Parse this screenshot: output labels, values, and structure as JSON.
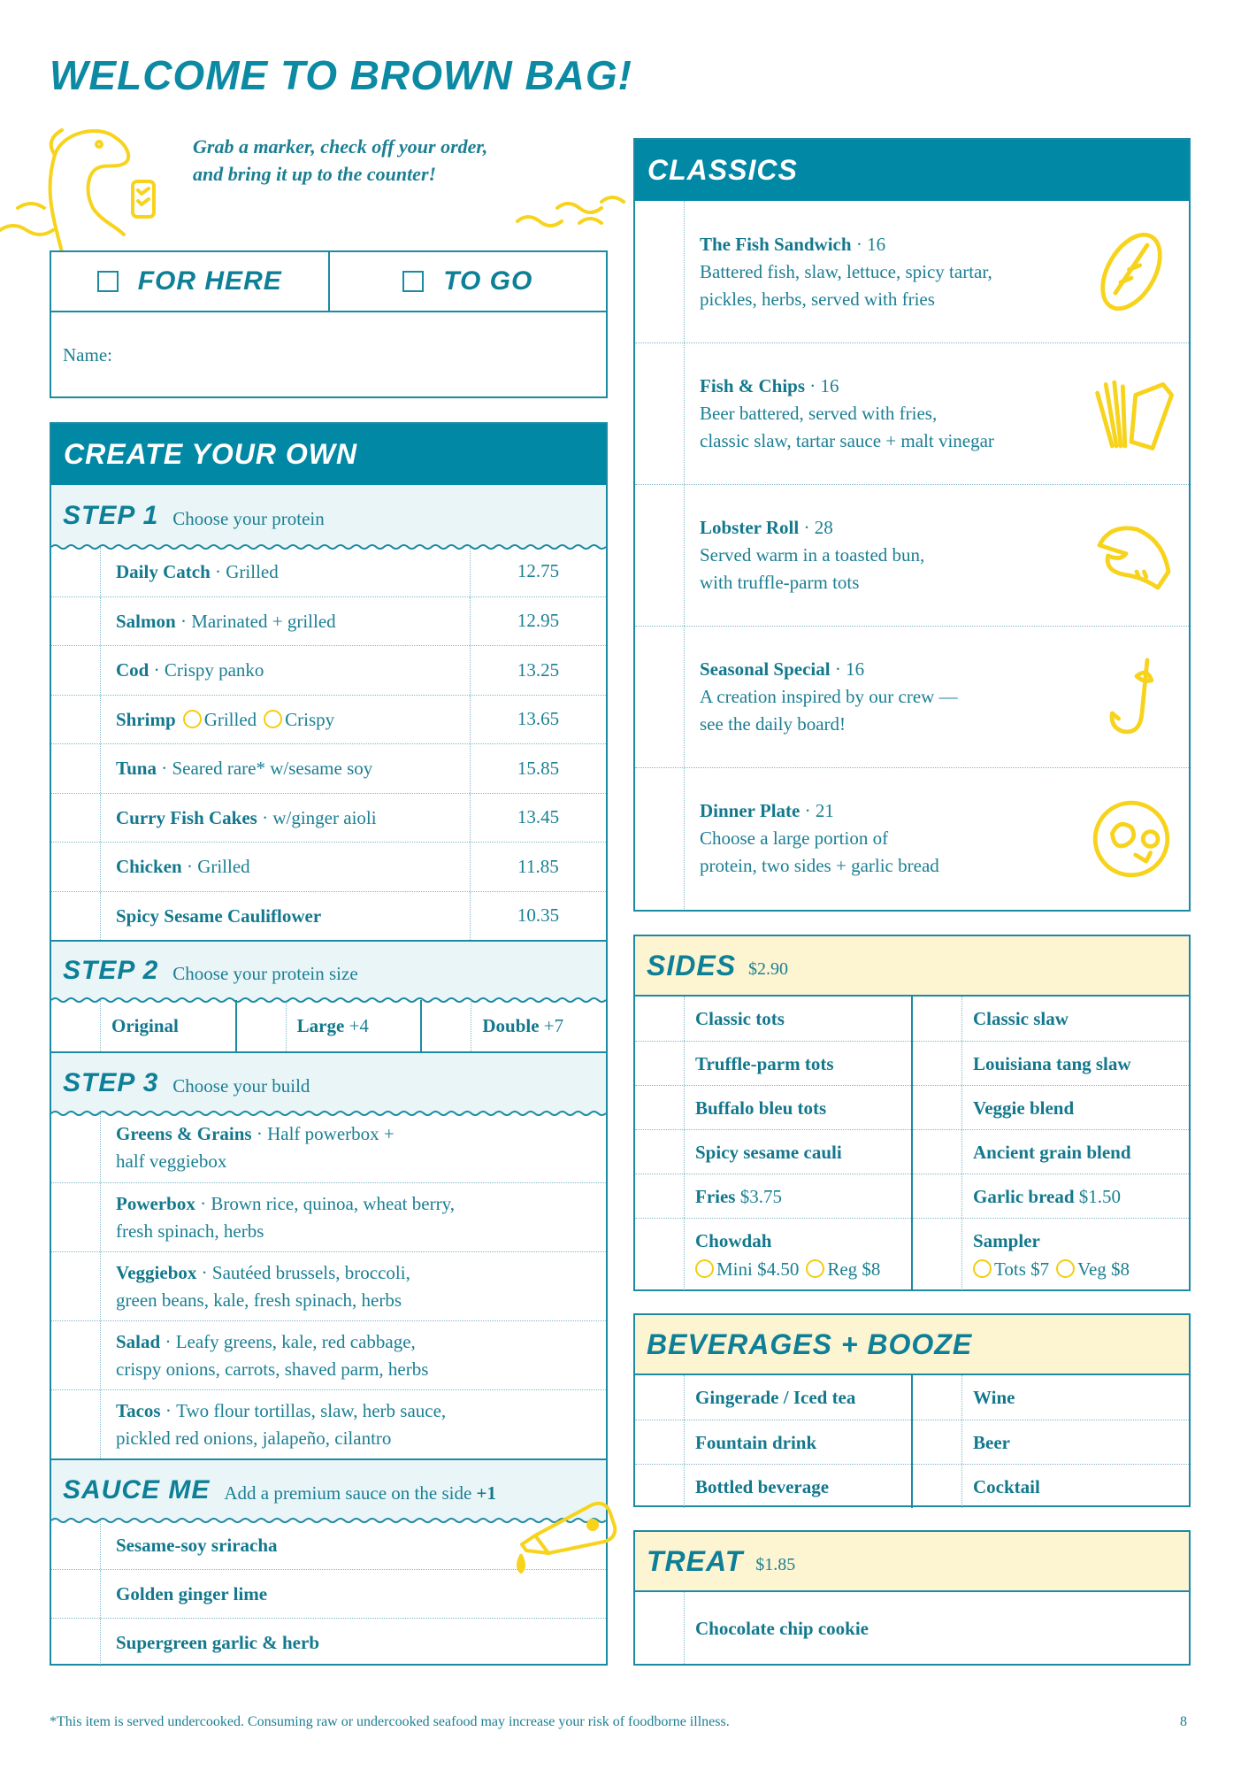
{
  "title": "Welcome to Brown Bag!",
  "intro": [
    "Grab a marker, check off your order,",
    "and bring it up to the counter!"
  ],
  "order": {
    "for_here": "For here",
    "to_go": "To go",
    "name_label": "Name:"
  },
  "create_your_own": {
    "title": "Create your own",
    "step1": {
      "label": "Step 1",
      "text": "Choose your protein"
    },
    "proteins": [
      {
        "name": "Daily Catch",
        "desc": "Grilled",
        "price": "12.75"
      },
      {
        "name": "Salmon",
        "desc": "Marinated + grilled",
        "price": "12.95"
      },
      {
        "name": "Cod",
        "desc": "Crispy panko",
        "price": "13.25"
      },
      {
        "name": "Shrimp",
        "options": [
          "Grilled",
          "Crispy"
        ],
        "price": "13.65"
      },
      {
        "name": "Tuna",
        "desc": "Seared rare* w/sesame soy",
        "price": "15.85"
      },
      {
        "name": "Curry Fish Cakes",
        "desc": "w/ginger aioli",
        "price": "13.45"
      },
      {
        "name": "Chicken",
        "desc": "Grilled",
        "price": "11.85"
      },
      {
        "name": "Spicy Sesame Cauliflower",
        "price": "10.35"
      }
    ],
    "step2": {
      "label": "Step 2",
      "text": "Choose your protein size"
    },
    "sizes": [
      {
        "name": "Original"
      },
      {
        "name": "Large",
        "extra": "+4"
      },
      {
        "name": "Double",
        "extra": "+7"
      }
    ],
    "step3": {
      "label": "Step 3",
      "text": "Choose your build"
    },
    "builds": [
      {
        "name": "Greens & Grains",
        "lines": [
          "Half powerbox +",
          "half veggiebox"
        ]
      },
      {
        "name": "Powerbox",
        "lines": [
          "Brown rice, quinoa, wheat berry,",
          "fresh spinach, herbs"
        ]
      },
      {
        "name": "Veggiebox",
        "lines": [
          "Sautéed brussels, broccoli,",
          "green beans, kale, fresh spinach, herbs"
        ]
      },
      {
        "name": "Salad",
        "lines": [
          "Leafy greens, kale, red cabbage,",
          "crispy onions, carrots, shaved parm, herbs"
        ]
      },
      {
        "name": "Tacos",
        "lines": [
          "Two flour tortillas, slaw, herb sauce,",
          "pickled red onions, jalapeño, cilantro"
        ]
      }
    ],
    "sauce": {
      "label": "Sauce me",
      "text": "Add a premium sauce on the side",
      "extra": "+1"
    },
    "sauces": [
      "Sesame-soy sriracha",
      "Golden ginger lime",
      "Supergreen garlic & herb"
    ]
  },
  "classics": {
    "title": "Classics",
    "items": [
      {
        "name": "The Fish Sandwich",
        "price": "16",
        "lines": [
          "Battered fish, slaw, lettuce, spicy tartar,",
          "pickles, herbs, served with fries"
        ],
        "icon": "sandwich-icon"
      },
      {
        "name": "Fish & Chips",
        "price": "16",
        "lines": [
          "Beer battered, served with fries,",
          "classic slaw, tartar sauce + malt vinegar"
        ],
        "icon": "fries-icon"
      },
      {
        "name": "Lobster Roll",
        "price": "28",
        "lines": [
          "Served warm in a toasted bun,",
          "with truffle-parm tots"
        ],
        "icon": "lobster-claw-icon"
      },
      {
        "name": "Seasonal Special",
        "price": "16",
        "lines": [
          "A creation inspired by our crew —",
          "see the daily board!"
        ],
        "icon": "fish-hook-icon"
      },
      {
        "name": "Dinner Plate",
        "price": "21",
        "lines": [
          "Choose a large portion of",
          "protein, two sides + garlic bread"
        ],
        "icon": "plate-icon"
      }
    ]
  },
  "sides": {
    "title": "Sides",
    "price": "$2.90",
    "left": [
      {
        "name": "Classic tots"
      },
      {
        "name": "Truffle-parm tots"
      },
      {
        "name": "Buffalo bleu tots"
      },
      {
        "name": "Spicy sesame cauli"
      },
      {
        "name": "Fries",
        "extra": "$3.75"
      },
      {
        "name": "Chowdah",
        "options": [
          "Mini $4.50",
          "Reg $8"
        ]
      }
    ],
    "right": [
      {
        "name": "Classic slaw"
      },
      {
        "name": "Louisiana tang slaw"
      },
      {
        "name": "Veggie blend"
      },
      {
        "name": "Ancient grain blend"
      },
      {
        "name": "Garlic bread",
        "extra": "$1.50"
      },
      {
        "name": "Sampler",
        "options": [
          "Tots $7",
          "Veg $8"
        ]
      }
    ]
  },
  "beverages": {
    "title": "Beverages + Booze",
    "left": [
      "Gingerade / Iced tea",
      "Fountain drink",
      "Bottled beverage"
    ],
    "right": [
      "Wine",
      "Beer",
      "Cocktail"
    ]
  },
  "treat": {
    "title": "Treat",
    "price": "$1.85",
    "items": [
      "Chocolate chip cookie"
    ]
  },
  "footer": {
    "note": "*This item is served undercooked. Consuming raw or undercooked seafood may increase your risk of foodborne illness.",
    "page": "8"
  },
  "colors": {
    "teal": "#0088a5",
    "text": "#1b7f93",
    "band": "#eaf5f8",
    "yellow_band": "#fdf4d2",
    "yellow": "#f7d31c"
  }
}
